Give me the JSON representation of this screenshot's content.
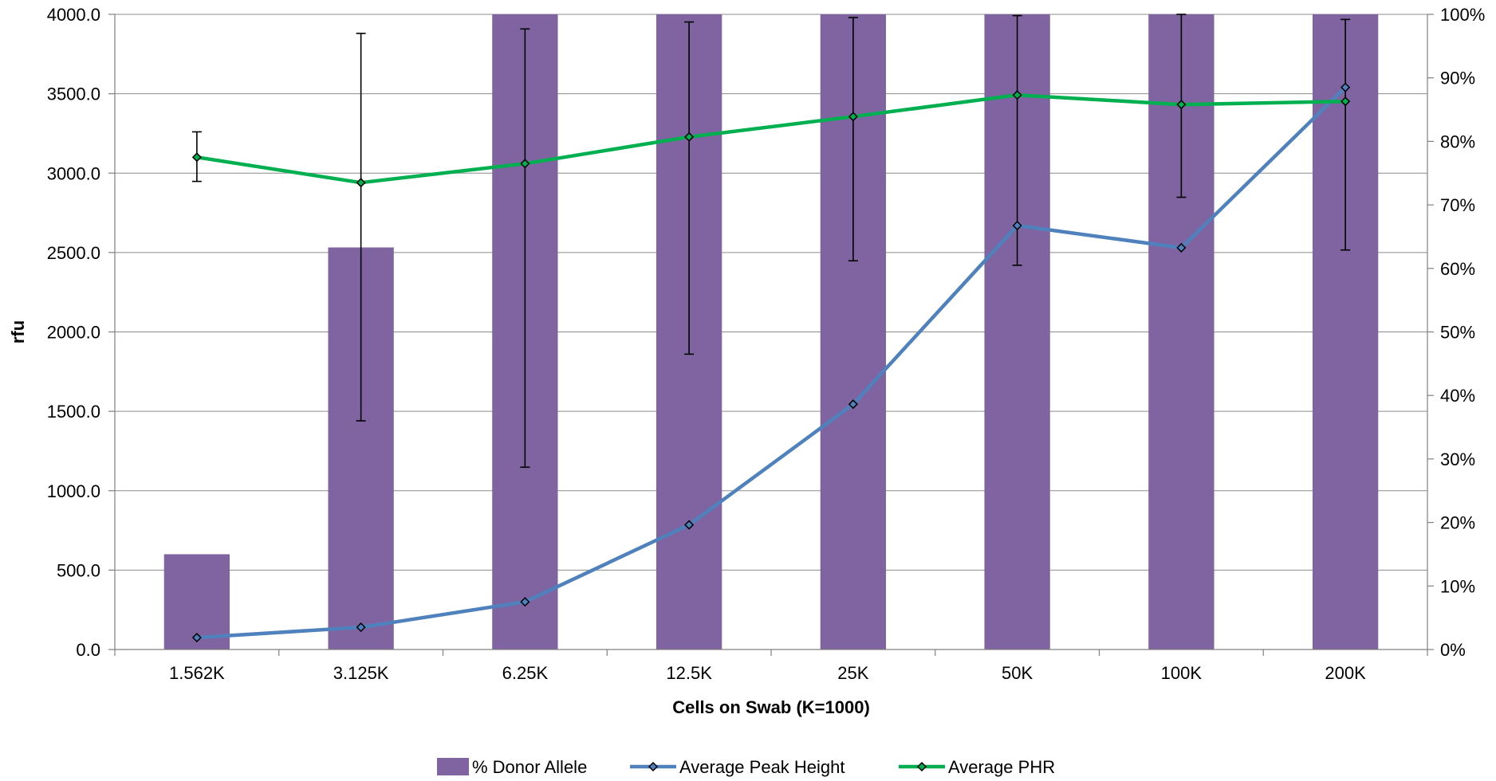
{
  "chart_data": {
    "type": "bar",
    "title": "",
    "xlabel": "Cells on Swab (K=1000)",
    "ylabel": "rfu",
    "y2label": "",
    "categories": [
      "1.562K",
      "3.125K",
      "6.25K",
      "12.5K",
      "25K",
      "50K",
      "100K",
      "200K"
    ],
    "ylim": [
      0,
      4000
    ],
    "y2lim": [
      0,
      100
    ],
    "yticks": [
      "0.0",
      "500.0",
      "1000.0",
      "1500.0",
      "2000.0",
      "2500.0",
      "3000.0",
      "3500.0",
      "4000.0"
    ],
    "y2ticks": [
      "0%",
      "10%",
      "20%",
      "30%",
      "40%",
      "50%",
      "60%",
      "70%",
      "80%",
      "90%",
      "100%"
    ],
    "grid": true,
    "legend_position": "bottom",
    "series": [
      {
        "name": "% Donor Allele",
        "type": "bar",
        "axis": "right",
        "color": "#8064A2",
        "values": [
          15,
          63.3,
          100,
          100,
          100,
          100,
          100,
          100
        ]
      },
      {
        "name": "Average Peak Height",
        "type": "line",
        "axis": "left",
        "color": "#4F81BD",
        "values": [
          75,
          140,
          300,
          785,
          1545,
          2670,
          2530,
          3540
        ]
      },
      {
        "name": "Average PHR",
        "type": "line",
        "axis": "right",
        "color": "#00B050",
        "values": [
          77.5,
          73.5,
          76.5,
          80.7,
          83.9,
          87.3,
          85.8,
          86.3
        ],
        "error_low": [
          73.7,
          36.0,
          28.7,
          46.5,
          61.2,
          60.5,
          71.2,
          62.9
        ],
        "error_high": [
          81.5,
          97.0,
          97.7,
          98.8,
          99.5,
          99.8,
          100,
          99.2
        ]
      }
    ]
  }
}
